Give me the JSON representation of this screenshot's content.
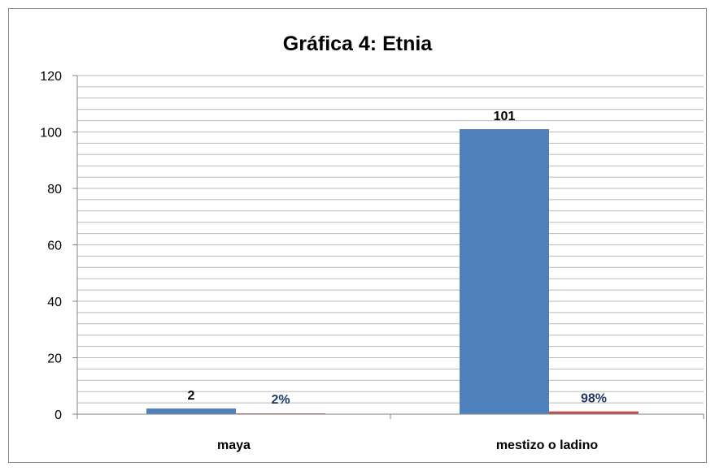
{
  "chart_data": {
    "type": "bar",
    "title": "Gráfica 4: Etnia",
    "categories": [
      "maya",
      "mestizo o ladino"
    ],
    "series": [
      {
        "values": [
          2,
          101
        ],
        "data_labels": [
          "2",
          "101"
        ],
        "color": "#4f81bd",
        "label_color": "#000000"
      },
      {
        "values": [
          0.02,
          0.98
        ],
        "data_labels": [
          "2%",
          "98%"
        ],
        "color": "#c0504d",
        "label_color": "#1f3864"
      }
    ],
    "ylim": [
      0,
      120
    ],
    "yticks": [
      0,
      20,
      40,
      60,
      80,
      100,
      120
    ],
    "grid": true,
    "legend": "none"
  }
}
